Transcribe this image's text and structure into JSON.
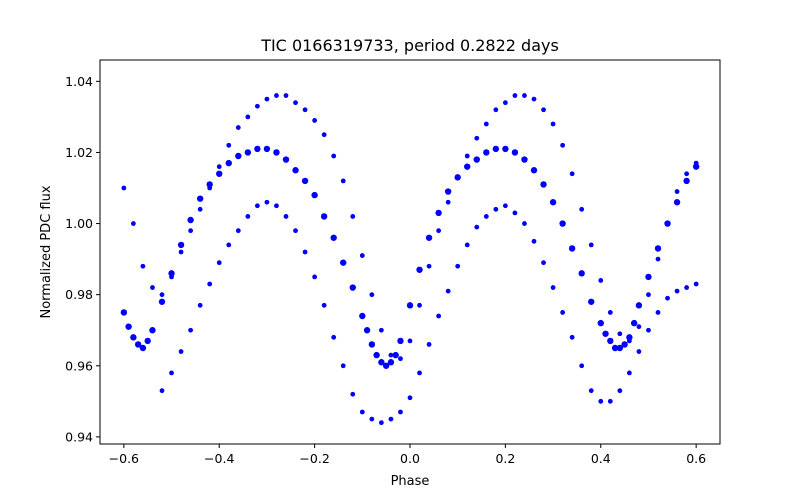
{
  "chart_data": {
    "type": "scatter",
    "title": "TIC 0166319733, period 0.2822 days",
    "xlabel": "Phase",
    "ylabel": "Normalized PDC flux",
    "xlim": [
      -0.65,
      0.65
    ],
    "ylim": [
      0.938,
      1.046
    ],
    "x_ticks": [
      -0.6,
      -0.4,
      -0.2,
      0.0,
      0.2,
      0.4,
      0.6
    ],
    "x_tick_labels": [
      "−0.6",
      "−0.4",
      "−0.2",
      "0.0",
      "0.2",
      "0.4",
      "0.6"
    ],
    "y_ticks": [
      0.94,
      0.96,
      0.98,
      1.0,
      1.02,
      1.04
    ],
    "y_tick_labels": [
      "0.94",
      "0.96",
      "0.98",
      "1.00",
      "1.02",
      "1.04"
    ],
    "grid": false,
    "legend": "none",
    "marker_color": "#0000ff",
    "series": [
      {
        "name": "",
        "main_branch": {
          "x": [
            -0.6,
            -0.59,
            -0.58,
            -0.57,
            -0.56,
            -0.55,
            -0.54,
            -0.52,
            -0.5,
            -0.48,
            -0.46,
            -0.44,
            -0.42,
            -0.4,
            -0.38,
            -0.36,
            -0.34,
            -0.32,
            -0.3,
            -0.28,
            -0.26,
            -0.24,
            -0.22,
            -0.2,
            -0.18,
            -0.16,
            -0.14,
            -0.12,
            -0.1,
            -0.09,
            -0.08,
            -0.07,
            -0.06,
            -0.05,
            -0.04,
            -0.03,
            -0.02,
            0.0,
            0.02,
            0.04,
            0.06,
            0.08,
            0.1,
            0.12,
            0.14,
            0.16,
            0.18,
            0.2,
            0.22,
            0.24,
            0.26,
            0.28,
            0.3,
            0.32,
            0.34,
            0.36,
            0.38,
            0.4,
            0.41,
            0.42,
            0.43,
            0.44,
            0.45,
            0.46,
            0.47,
            0.48,
            0.5,
            0.52,
            0.54,
            0.56,
            0.58,
            0.6
          ],
          "y": [
            0.975,
            0.971,
            0.968,
            0.966,
            0.965,
            0.967,
            0.97,
            0.978,
            0.986,
            0.994,
            1.001,
            1.007,
            1.011,
            1.014,
            1.017,
            1.019,
            1.02,
            1.021,
            1.021,
            1.02,
            1.018,
            1.015,
            1.012,
            1.008,
            1.002,
            0.996,
            0.989,
            0.982,
            0.974,
            0.97,
            0.966,
            0.963,
            0.961,
            0.96,
            0.961,
            0.963,
            0.967,
            0.977,
            0.987,
            0.996,
            1.003,
            1.009,
            1.013,
            1.016,
            1.018,
            1.02,
            1.021,
            1.021,
            1.02,
            1.018,
            1.015,
            1.011,
            1.006,
            1.0,
            0.993,
            0.986,
            0.978,
            0.972,
            0.969,
            0.967,
            0.965,
            0.965,
            0.966,
            0.968,
            0.972,
            0.977,
            0.985,
            0.993,
            1.0,
            1.006,
            1.012,
            1.016
          ]
        },
        "upper_branch": {
          "x": [
            -0.6,
            -0.58,
            -0.56,
            -0.54,
            -0.52,
            -0.5,
            -0.48,
            -0.46,
            -0.44,
            -0.42,
            -0.4,
            -0.38,
            -0.36,
            -0.34,
            -0.32,
            -0.3,
            -0.28,
            -0.26,
            -0.24,
            -0.22,
            -0.2,
            -0.18,
            -0.16,
            -0.14,
            -0.12,
            -0.1,
            -0.08,
            -0.06,
            -0.04,
            -0.02,
            0.0,
            0.02,
            0.04,
            0.06,
            0.08,
            0.1,
            0.12,
            0.14,
            0.16,
            0.18,
            0.2,
            0.22,
            0.24,
            0.26,
            0.28,
            0.3,
            0.32,
            0.34,
            0.36,
            0.38,
            0.4,
            0.42,
            0.44,
            0.46,
            0.48,
            0.5,
            0.52,
            0.54,
            0.56,
            0.58,
            0.6
          ],
          "y": [
            1.01,
            1.0,
            0.988,
            0.982,
            0.98,
            0.985,
            0.992,
            0.998,
            1.004,
            1.01,
            1.016,
            1.022,
            1.027,
            1.03,
            1.033,
            1.035,
            1.036,
            1.036,
            1.034,
            1.032,
            1.029,
            1.025,
            1.019,
            1.012,
            1.002,
            0.991,
            0.98,
            0.97,
            0.963,
            0.962,
            0.967,
            0.977,
            0.988,
            0.998,
            1.006,
            1.013,
            1.019,
            1.024,
            1.028,
            1.032,
            1.034,
            1.036,
            1.036,
            1.035,
            1.032,
            1.028,
            1.022,
            1.014,
            1.004,
            0.994,
            0.984,
            0.975,
            0.969,
            0.967,
            0.971,
            0.98,
            0.99,
            1.0,
            1.009,
            1.014,
            1.017
          ]
        },
        "lower_branch": {
          "x": [
            -0.52,
            -0.5,
            -0.48,
            -0.46,
            -0.44,
            -0.42,
            -0.4,
            -0.38,
            -0.36,
            -0.34,
            -0.32,
            -0.3,
            -0.28,
            -0.26,
            -0.24,
            -0.22,
            -0.2,
            -0.18,
            -0.16,
            -0.14,
            -0.12,
            -0.1,
            -0.08,
            -0.06,
            -0.04,
            -0.02,
            0.0,
            0.02,
            0.04,
            0.06,
            0.08,
            0.1,
            0.12,
            0.14,
            0.16,
            0.18,
            0.2,
            0.22,
            0.24,
            0.26,
            0.28,
            0.3,
            0.32,
            0.34,
            0.36,
            0.38,
            0.4,
            0.42,
            0.44,
            0.46,
            0.48,
            0.5,
            0.52,
            0.54,
            0.56,
            0.58,
            0.6
          ],
          "y": [
            0.953,
            0.958,
            0.964,
            0.97,
            0.977,
            0.983,
            0.989,
            0.994,
            0.998,
            1.002,
            1.005,
            1.006,
            1.005,
            1.002,
            0.998,
            0.992,
            0.985,
            0.977,
            0.968,
            0.96,
            0.952,
            0.947,
            0.945,
            0.944,
            0.945,
            0.947,
            0.951,
            0.958,
            0.966,
            0.974,
            0.981,
            0.988,
            0.994,
            0.999,
            1.002,
            1.004,
            1.005,
            1.003,
            1.0,
            0.995,
            0.989,
            0.982,
            0.975,
            0.968,
            0.96,
            0.953,
            0.95,
            0.95,
            0.953,
            0.958,
            0.964,
            0.97,
            0.975,
            0.979,
            0.981,
            0.982,
            0.983
          ]
        }
      }
    ]
  }
}
